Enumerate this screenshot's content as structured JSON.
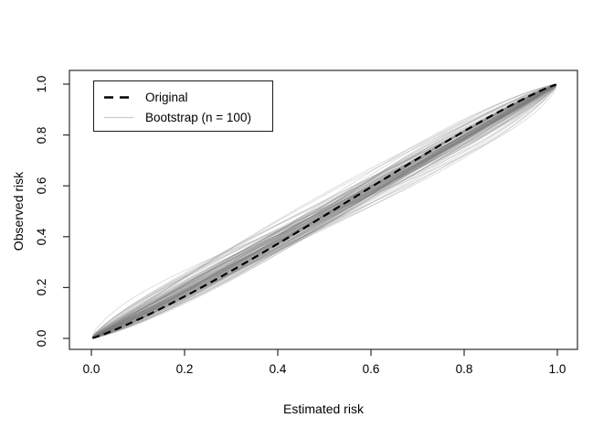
{
  "figure": {
    "background": "#ffffff",
    "title": ""
  },
  "axes": {
    "x": {
      "title": "Estimated risk",
      "tick_labels": [
        "0.0",
        "0.2",
        "0.4",
        "0.6",
        "0.8",
        "1.0"
      ],
      "tick_values": [
        0,
        0.2,
        0.4,
        0.6,
        0.8,
        1.0
      ],
      "range": [
        0,
        1
      ]
    },
    "y": {
      "title": "Observed risk",
      "tick_labels": [
        "0.0",
        "0.2",
        "0.4",
        "0.6",
        "0.8",
        "1.0"
      ],
      "tick_values": [
        0,
        0.2,
        0.4,
        0.6,
        0.8,
        1.0
      ],
      "range": [
        0,
        1
      ]
    }
  },
  "legend": {
    "position": "top-left",
    "items": [
      {
        "label": "Original",
        "line_style": "dashed",
        "color": "#000000"
      },
      {
        "label": "Bootstrap (n = 100)",
        "line_style": "solid",
        "color": "#cccccc"
      }
    ]
  },
  "chart_data": {
    "type": "line",
    "title": "",
    "xlabel": "Estimated risk",
    "ylabel": "Observed risk",
    "xlim": [
      0,
      1
    ],
    "ylim": [
      0,
      1
    ],
    "grid": false,
    "legend_position": "top-left",
    "frame": "box",
    "series": [
      {
        "name": "Original",
        "style": "dashed",
        "color": "#000000",
        "line_width": 2.2,
        "x": [
          0,
          0.1,
          0.2,
          0.3,
          0.4,
          0.5,
          0.6,
          0.7,
          0.8,
          0.9,
          1.0
        ],
        "y": [
          0,
          0.075,
          0.165,
          0.266,
          0.372,
          0.483,
          0.594,
          0.704,
          0.814,
          0.916,
          1.0
        ],
        "generator": {
          "model": "logistic_calibration",
          "intercept": -0.07,
          "slope": 1.12
        }
      },
      {
        "name": "Bootstrap (n = 100)",
        "style": "solid",
        "color": "#7a7a7a",
        "opacity": 0.25,
        "line_width": 1,
        "count": 100,
        "description": "100 bootstrap calibration curves, all passing through (0,0) and (1,1), forming a spindle around the original curve",
        "generator": {
          "model": "logistic_calibration",
          "seed": 7,
          "intercept_mean": -0.05,
          "intercept_sd": 0.11,
          "slope_mean": 1.02,
          "slope_sd": 0.1
        },
        "envelope_y_at_x_0_5": [
          0.42,
          0.56
        ]
      }
    ]
  }
}
